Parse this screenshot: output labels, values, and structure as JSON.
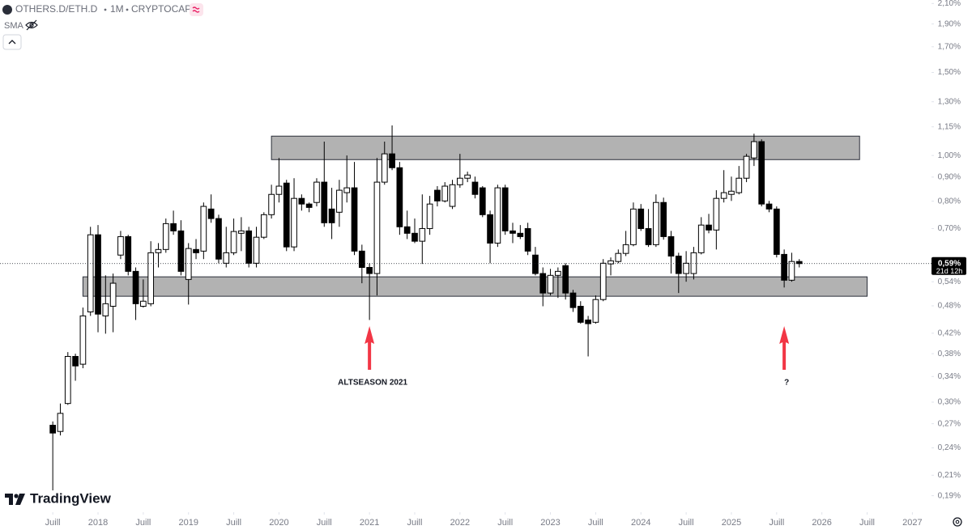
{
  "header": {
    "symbol": "OTHERS.D/ETH.D",
    "interval": "1M",
    "exchange": "CRYPTOCAP",
    "indicator": "SMA"
  },
  "logo": "TradingView",
  "chart_data": {
    "type": "candlestick",
    "log_scale": true,
    "grid": false,
    "up_color": "#ffffff",
    "down_color": "#000000",
    "ylim": [
      0.176,
      2.136
    ],
    "yticks": [
      {
        "value": 2.1,
        "label": "2,10%"
      },
      {
        "value": 1.9,
        "label": "1,90%"
      },
      {
        "value": 1.7,
        "label": "1,70%"
      },
      {
        "value": 1.5,
        "label": "1,50%"
      },
      {
        "value": 1.3,
        "label": "1,30%"
      },
      {
        "value": 1.15,
        "label": "1,15%"
      },
      {
        "value": 1.0,
        "label": "1,00%"
      },
      {
        "value": 0.9,
        "label": "0,90%"
      },
      {
        "value": 0.8,
        "label": "0,80%"
      },
      {
        "value": 0.7,
        "label": "0,70%"
      },
      {
        "value": 0.54,
        "label": "0,54%"
      },
      {
        "value": 0.48,
        "label": "0,48%"
      },
      {
        "value": 0.42,
        "label": "0,42%"
      },
      {
        "value": 0.38,
        "label": "0,38%"
      },
      {
        "value": 0.34,
        "label": "0,34%"
      },
      {
        "value": 0.3,
        "label": "0,30%"
      },
      {
        "value": 0.27,
        "label": "0,27%"
      },
      {
        "value": 0.24,
        "label": "0,24%"
      },
      {
        "value": 0.21,
        "label": "0,21%"
      },
      {
        "value": 0.19,
        "label": "0,19%"
      }
    ],
    "xlim": [
      "2016-12",
      "2027-03"
    ],
    "xticks": [
      {
        "value": "2017-07",
        "label": "Juill"
      },
      {
        "value": "2018-01",
        "label": "2018"
      },
      {
        "value": "2018-07",
        "label": "Juill"
      },
      {
        "value": "2019-01",
        "label": "2019"
      },
      {
        "value": "2019-07",
        "label": "Juill"
      },
      {
        "value": "2020-01",
        "label": "2020"
      },
      {
        "value": "2020-07",
        "label": "Juill"
      },
      {
        "value": "2021-01",
        "label": "2021"
      },
      {
        "value": "2021-07",
        "label": "Juill"
      },
      {
        "value": "2022-01",
        "label": "2022"
      },
      {
        "value": "2022-07",
        "label": "Juill"
      },
      {
        "value": "2023-01",
        "label": "2023"
      },
      {
        "value": "2023-07",
        "label": "Juill"
      },
      {
        "value": "2024-01",
        "label": "2024"
      },
      {
        "value": "2024-07",
        "label": "Juill"
      },
      {
        "value": "2025-01",
        "label": "2025"
      },
      {
        "value": "2025-07",
        "label": "Juill"
      },
      {
        "value": "2026-01",
        "label": "2026"
      },
      {
        "value": "2026-07",
        "label": "Juill"
      },
      {
        "value": "2027-01",
        "label": "2027"
      }
    ],
    "candles": {
      "x": [
        "2017-07",
        "2017-08",
        "2017-09",
        "2017-10",
        "2017-11",
        "2017-12",
        "2018-01",
        "2018-02",
        "2018-03",
        "2018-04",
        "2018-05",
        "2018-06",
        "2018-07",
        "2018-08",
        "2018-09",
        "2018-10",
        "2018-11",
        "2018-12",
        "2019-01",
        "2019-02",
        "2019-03",
        "2019-04",
        "2019-05",
        "2019-06",
        "2019-07",
        "2019-08",
        "2019-09",
        "2019-10",
        "2019-11",
        "2019-12",
        "2020-01",
        "2020-02",
        "2020-03",
        "2020-04",
        "2020-05",
        "2020-06",
        "2020-07",
        "2020-08",
        "2020-09",
        "2020-10",
        "2020-11",
        "2020-12",
        "2021-01",
        "2021-02",
        "2021-03",
        "2021-04",
        "2021-05",
        "2021-06",
        "2021-07",
        "2021-08",
        "2021-09",
        "2021-10",
        "2021-11",
        "2021-12",
        "2022-01",
        "2022-02",
        "2022-03",
        "2022-04",
        "2022-05",
        "2022-06",
        "2022-07",
        "2022-08",
        "2022-09",
        "2022-10",
        "2022-11",
        "2022-12",
        "2023-01",
        "2023-02",
        "2023-03",
        "2023-04",
        "2023-05",
        "2023-06",
        "2023-07",
        "2023-08",
        "2023-09",
        "2023-10",
        "2023-11",
        "2023-12",
        "2024-01",
        "2024-02",
        "2024-03",
        "2024-04",
        "2024-05",
        "2024-06",
        "2024-07",
        "2024-08",
        "2024-09",
        "2024-10",
        "2024-11",
        "2024-12",
        "2025-01",
        "2025-02",
        "2025-03",
        "2025-04",
        "2025-05",
        "2025-06",
        "2025-07",
        "2025-08",
        "2025-09",
        "2025-10"
      ],
      "open": [
        0.268,
        0.26,
        0.298,
        0.375,
        0.361,
        0.466,
        0.679,
        0.457,
        0.479,
        0.615,
        0.673,
        0.568,
        0.479,
        0.485,
        0.622,
        0.632,
        0.717,
        0.692,
        0.546,
        0.632,
        0.627,
        0.77,
        0.735,
        0.591,
        0.622,
        0.684,
        0.692,
        0.591,
        0.671,
        0.749,
        0.827,
        0.874,
        0.64,
        0.811,
        0.789,
        0.795,
        0.878,
        0.77,
        0.758,
        0.834,
        0.854,
        0.627,
        0.579,
        0.562,
        0.878,
        1.008,
        0.942,
        0.706,
        0.684,
        0.658,
        0.7,
        0.844,
        0.801,
        0.78,
        0.867,
        0.895,
        0.878,
        0.854,
        0.749,
        0.652,
        0.854,
        0.692,
        0.684,
        0.7,
        0.615,
        0.562,
        0.511,
        0.557,
        0.584,
        0.511,
        0.479,
        0.448,
        0.443,
        0.495,
        0.589,
        0.596,
        0.62,
        0.647,
        0.77,
        0.7,
        0.647,
        0.795,
        0.673,
        0.612,
        0.562,
        0.562,
        0.622,
        0.712,
        0.695,
        0.811,
        0.827,
        0.834,
        0.895,
        0.988,
        1.07,
        0.789,
        0.77,
        0.617,
        0.544,
        0.596
      ],
      "high": [
        0.273,
        0.298,
        0.383,
        0.38,
        0.476,
        0.706,
        0.712,
        0.557,
        0.562,
        0.692,
        0.679,
        0.579,
        0.546,
        0.658,
        0.652,
        0.735,
        0.764,
        0.729,
        0.652,
        0.665,
        0.795,
        0.827,
        0.749,
        0.706,
        0.735,
        0.74,
        0.706,
        0.706,
        0.758,
        0.867,
        0.988,
        0.888,
        0.895,
        0.827,
        0.795,
        0.895,
        1.07,
        0.854,
        0.888,
        1.0,
        0.969,
        0.647,
        0.591,
        0.988,
        1.07,
        1.158,
        0.969,
        0.764,
        0.735,
        0.827,
        0.821,
        0.861,
        0.878,
        0.888,
        1.008,
        0.924,
        0.902,
        0.861,
        0.764,
        0.867,
        0.867,
        0.72,
        0.712,
        0.72,
        0.64,
        0.579,
        0.575,
        0.579,
        0.591,
        0.519,
        0.491,
        0.457,
        0.505,
        0.603,
        0.608,
        0.632,
        0.692,
        0.795,
        0.789,
        0.77,
        0.827,
        0.814,
        0.692,
        0.622,
        0.627,
        0.64,
        0.74,
        0.752,
        0.844,
        0.931,
        0.902,
        0.95,
        1.008,
        1.112,
        1.082,
        0.801,
        0.78,
        0.632,
        0.622,
        0.603
      ],
      "low": [
        0.195,
        0.255,
        0.296,
        0.333,
        0.354,
        0.457,
        0.422,
        0.419,
        0.422,
        0.603,
        0.557,
        0.448,
        0.476,
        0.479,
        0.579,
        0.622,
        0.679,
        0.557,
        0.483,
        0.603,
        0.603,
        0.72,
        0.591,
        0.579,
        0.615,
        0.627,
        0.579,
        0.579,
        0.665,
        0.735,
        0.795,
        0.627,
        0.627,
        0.764,
        0.758,
        0.78,
        0.706,
        0.665,
        0.706,
        0.795,
        0.615,
        0.536,
        0.448,
        0.505,
        0.867,
        0.931,
        0.679,
        0.665,
        0.652,
        0.589,
        0.679,
        0.78,
        0.795,
        0.77,
        0.854,
        0.878,
        0.811,
        0.74,
        0.591,
        0.64,
        0.679,
        0.652,
        0.665,
        0.615,
        0.557,
        0.479,
        0.505,
        0.499,
        0.495,
        0.466,
        0.44,
        0.375,
        0.44,
        0.491,
        0.557,
        0.591,
        0.612,
        0.642,
        0.692,
        0.64,
        0.64,
        0.663,
        0.562,
        0.511,
        0.54,
        0.546,
        0.617,
        0.684,
        0.632,
        0.795,
        0.801,
        0.827,
        0.878,
        0.95,
        0.78,
        0.758,
        0.608,
        0.525,
        0.54,
        0.579
      ],
      "close": [
        0.258,
        0.284,
        0.375,
        0.358,
        0.457,
        0.679,
        0.461,
        0.485,
        0.536,
        0.673,
        0.568,
        0.485,
        0.491,
        0.622,
        0.632,
        0.717,
        0.692,
        0.568,
        0.635,
        0.622,
        0.78,
        0.735,
        0.603,
        0.622,
        0.69,
        0.692,
        0.591,
        0.671,
        0.749,
        0.827,
        0.861,
        0.64,
        0.811,
        0.789,
        0.776,
        0.878,
        0.72,
        0.72,
        0.844,
        0.854,
        0.627,
        0.579,
        0.562,
        0.878,
        1.008,
        0.942,
        0.706,
        0.684,
        0.658,
        0.7,
        0.789,
        0.801,
        0.861,
        0.867,
        0.895,
        0.909,
        0.827,
        0.749,
        0.652,
        0.854,
        0.692,
        0.684,
        0.673,
        0.627,
        0.562,
        0.511,
        0.557,
        0.568,
        0.511,
        0.476,
        0.443,
        0.44,
        0.495,
        0.591,
        0.598,
        0.62,
        0.647,
        0.77,
        0.7,
        0.647,
        0.795,
        0.673,
        0.612,
        0.562,
        0.591,
        0.622,
        0.712,
        0.695,
        0.811,
        0.834,
        0.84,
        0.895,
        0.996,
        1.07,
        0.789,
        0.77,
        0.617,
        0.544,
        0.596,
        0.59
      ]
    },
    "zones": [
      {
        "x0": "2019-12",
        "x1": "2026-06",
        "ymin": 0.98,
        "ymax": 1.099
      },
      {
        "x0": "2017-11",
        "x1": "2026-07",
        "ymin": 0.503,
        "ymax": 0.553
      }
    ],
    "annotations": [
      {
        "text": "ALTSEASON 2021",
        "x": "2021-01"
      },
      {
        "text": "?",
        "x": "2025-08"
      }
    ],
    "last_price": {
      "value": 0.59,
      "label": "0,59%"
    },
    "countdown": "21d 12h"
  }
}
